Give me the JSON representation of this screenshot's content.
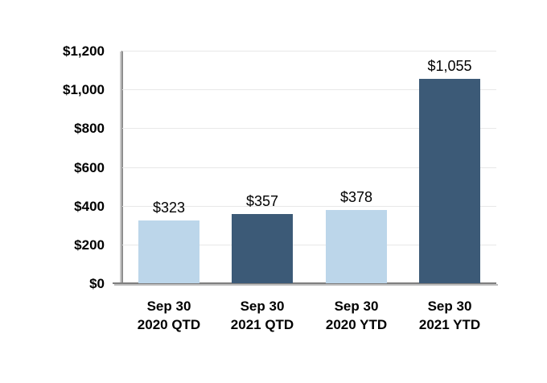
{
  "chart_data": {
    "type": "bar",
    "title": "",
    "xlabel": "",
    "ylabel": "",
    "categories": [
      "Sep 30 2020 QTD",
      "Sep 30 2021 QTD",
      "Sep 30 2020 YTD",
      "Sep 30 2021 YTD"
    ],
    "category_lines": [
      [
        "Sep 30",
        "2020 QTD"
      ],
      [
        "Sep 30",
        "2021 QTD"
      ],
      [
        "Sep 30",
        "2020 YTD"
      ],
      [
        "Sep 30",
        "2021 YTD"
      ]
    ],
    "values": [
      323,
      357,
      378,
      1055
    ],
    "value_labels": [
      "$323",
      "$357",
      "$378",
      "$1,055"
    ],
    "bar_colors": [
      "#BCD6EA",
      "#3C5A77",
      "#BCD6EA",
      "#3C5A77"
    ],
    "ylim": [
      0,
      1200
    ],
    "y_ticks": [
      {
        "value": 0,
        "label": "$0"
      },
      {
        "value": 200,
        "label": "$200"
      },
      {
        "value": 400,
        "label": "$400"
      },
      {
        "value": 600,
        "label": "$600"
      },
      {
        "value": 800,
        "label": "$800"
      },
      {
        "value": 1000,
        "label": "$1,000"
      },
      {
        "value": 1200,
        "label": "$1,200"
      }
    ],
    "grid": true,
    "legend": false
  },
  "colors": {
    "bar_light": "#BCD6EA",
    "bar_dark": "#3C5A77",
    "gridline": "#E8E8E8",
    "axis_line": "#808080",
    "text": "#000000",
    "background": "#FFFFFF"
  }
}
